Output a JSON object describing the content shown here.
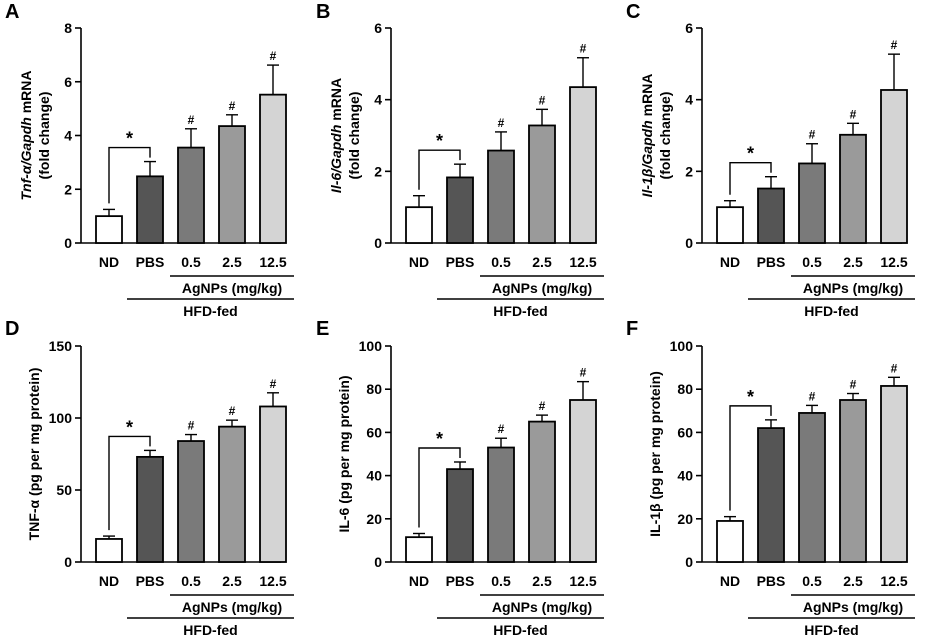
{
  "figure": {
    "group_label": "HFD-fed",
    "subgroup_label": "AgNPs (mg/kg)"
  },
  "colors": {
    "ND": "#ffffff",
    "PBS": "#555555",
    "d05": "#7a7a7a",
    "d25": "#9a9a9a",
    "d125": "#d4d4d4"
  },
  "chart_data": [
    {
      "panel": "A",
      "type": "bar",
      "ylabel_parts": [
        {
          "t": "Tnf-",
          "i": true
        },
        {
          "t": "α",
          "i": true
        },
        {
          "t": "/",
          "i": true
        },
        {
          "t": "Gapdh",
          "i": true
        },
        {
          "t": " mRNA",
          "i": false
        }
      ],
      "ylabel_line2": "(fold change)",
      "ylim": [
        0,
        8
      ],
      "yticks": [
        0,
        2,
        4,
        6,
        8
      ],
      "ytick_labels": [
        "0",
        "2",
        "4",
        "6",
        "8"
      ],
      "categories": [
        "ND",
        "PBS",
        "0.5",
        "2.5",
        "12.5"
      ],
      "values": [
        1.0,
        2.48,
        3.55,
        4.35,
        5.52
      ],
      "errors": [
        0.25,
        0.55,
        0.7,
        0.42,
        1.1
      ],
      "star": "*",
      "hash": "#"
    },
    {
      "panel": "B",
      "type": "bar",
      "ylabel_parts": [
        {
          "t": "Il-6",
          "i": true
        },
        {
          "t": "/",
          "i": true
        },
        {
          "t": "Gapdh",
          "i": true
        },
        {
          "t": " mRNA",
          "i": false
        }
      ],
      "ylabel_line2": "(fold change)",
      "ylim": [
        0,
        6
      ],
      "yticks": [
        0,
        2,
        4,
        6
      ],
      "ytick_labels": [
        "0",
        "2",
        "4",
        "6"
      ],
      "categories": [
        "ND",
        "PBS",
        "0.5",
        "2.5",
        "12.5"
      ],
      "values": [
        1.0,
        1.83,
        2.58,
        3.28,
        4.35
      ],
      "errors": [
        0.32,
        0.37,
        0.52,
        0.45,
        0.82
      ],
      "star": "*",
      "hash": "#"
    },
    {
      "panel": "C",
      "type": "bar",
      "ylabel_parts": [
        {
          "t": "Il-1",
          "i": true
        },
        {
          "t": "β",
          "i": true
        },
        {
          "t": "/",
          "i": true
        },
        {
          "t": "Gapdh",
          "i": true
        },
        {
          "t": " mRNA",
          "i": false
        }
      ],
      "ylabel_line2": "(fold change)",
      "ylim": [
        0,
        6
      ],
      "yticks": [
        0,
        2,
        4,
        6
      ],
      "ytick_labels": [
        "0",
        "2",
        "4",
        "6"
      ],
      "categories": [
        "ND",
        "PBS",
        "0.5",
        "2.5",
        "12.5"
      ],
      "values": [
        1.0,
        1.52,
        2.22,
        3.02,
        4.27
      ],
      "errors": [
        0.18,
        0.33,
        0.55,
        0.32,
        1.0
      ],
      "star": "*",
      "hash": "#"
    },
    {
      "panel": "D",
      "type": "bar",
      "ylabel_parts": [
        {
          "t": "TNF-α (pg per mg protein)",
          "i": false
        }
      ],
      "ylabel_line2": "",
      "ylim": [
        0,
        150
      ],
      "yticks": [
        0,
        50,
        100,
        150
      ],
      "ytick_labels": [
        "0",
        "50",
        "100",
        "150"
      ],
      "categories": [
        "ND",
        "PBS",
        "0.5",
        "2.5",
        "12.5"
      ],
      "values": [
        16,
        73,
        84,
        94,
        108
      ],
      "errors": [
        2,
        4.5,
        4.5,
        4.5,
        9.5
      ],
      "star": "*",
      "hash": "#"
    },
    {
      "panel": "E",
      "type": "bar",
      "ylabel_parts": [
        {
          "t": "IL-6 (pg per mg protein)",
          "i": false
        }
      ],
      "ylabel_line2": "",
      "ylim": [
        0,
        100
      ],
      "yticks": [
        0,
        20,
        40,
        60,
        80,
        100
      ],
      "ytick_labels": [
        "0",
        "20",
        "40",
        "60",
        "80",
        "100"
      ],
      "categories": [
        "ND",
        "PBS",
        "0.5",
        "2.5",
        "12.5"
      ],
      "values": [
        11.5,
        43,
        53,
        65,
        75
      ],
      "errors": [
        1.7,
        3.3,
        4.3,
        3.0,
        8.5
      ],
      "star": "*",
      "hash": "#"
    },
    {
      "panel": "F",
      "type": "bar",
      "ylabel_parts": [
        {
          "t": "IL-1β (pg per mg protein)",
          "i": false
        }
      ],
      "ylabel_line2": "",
      "ylim": [
        0,
        100
      ],
      "yticks": [
        0,
        20,
        40,
        60,
        80,
        100
      ],
      "ytick_labels": [
        "0",
        "20",
        "40",
        "60",
        "80",
        "100"
      ],
      "categories": [
        "ND",
        "PBS",
        "0.5",
        "2.5",
        "12.5"
      ],
      "values": [
        19,
        62,
        69,
        75,
        81.5
      ],
      "errors": [
        2,
        3.8,
        3.5,
        3.0,
        4.0
      ],
      "star": "*",
      "hash": "#"
    }
  ]
}
